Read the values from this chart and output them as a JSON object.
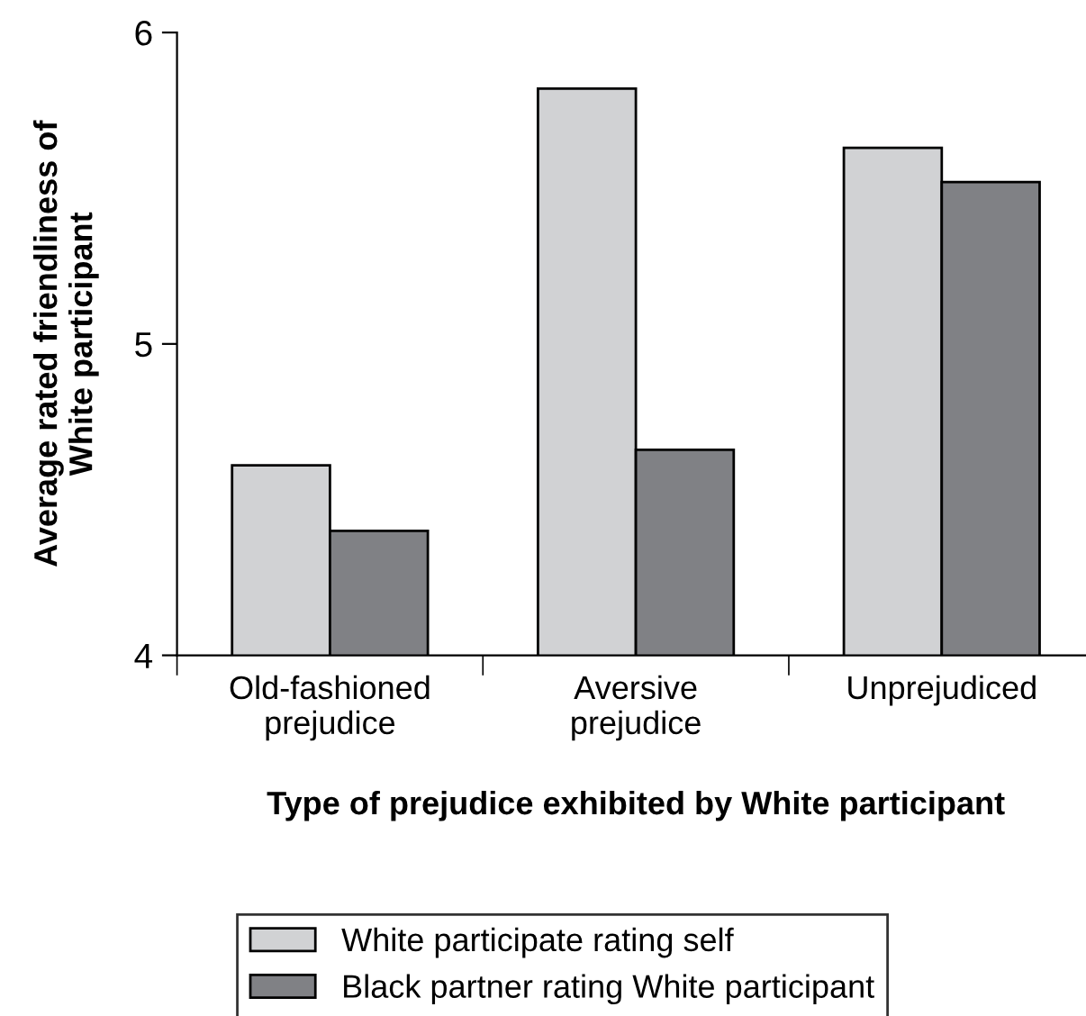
{
  "chart_data": {
    "type": "bar",
    "xlabel": "Type of prejudice exhibited by White participant",
    "ylabel": "Average rated friendliness of\nWhite participant",
    "categories": [
      "Old-fashioned\nprejudice",
      "Aversive\nprejudice",
      "Unprejudiced"
    ],
    "series": [
      {
        "name": "White participate rating self",
        "color": "#d1d2d4",
        "values": [
          4.61,
          5.82,
          5.63
        ]
      },
      {
        "name": "Black partner rating White participant",
        "color": "#808185",
        "values": [
          4.4,
          4.66,
          5.52
        ]
      }
    ],
    "ylim": [
      4,
      6
    ],
    "yticks": [
      4,
      5,
      6
    ],
    "grid": false,
    "legend": "bottom"
  }
}
